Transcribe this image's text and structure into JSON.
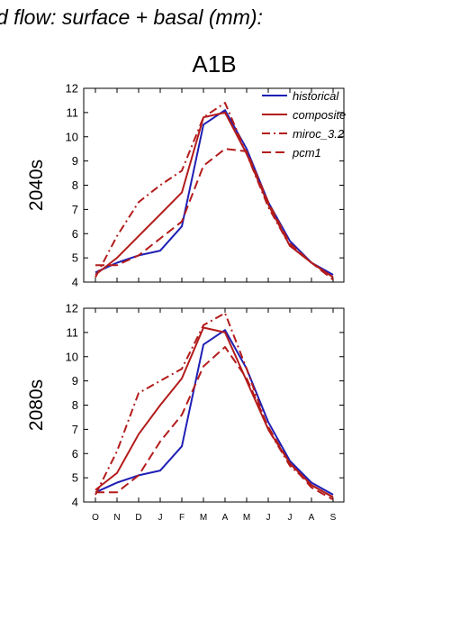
{
  "figure": {
    "title": "d flow: surface + basal (mm):",
    "subtitle": "A1B"
  },
  "colors": {
    "historical": "#1f1fb4",
    "composite": "#b31b1b",
    "miroc_3.2": "#b31b1b",
    "pcm1": "#b31b1b"
  },
  "chart_data": [
    {
      "type": "line",
      "panel_label": "2040s",
      "categories": [
        "O",
        "N",
        "D",
        "J",
        "F",
        "M",
        "A",
        "M",
        "J",
        "J",
        "A",
        "S"
      ],
      "ylim": [
        4,
        12
      ],
      "yticks": [
        4,
        5,
        6,
        7,
        8,
        9,
        10,
        11,
        12
      ],
      "legend": {
        "position": "top-right",
        "entries": [
          "historical",
          "composite",
          "miroc_3.2",
          "pcm1"
        ]
      },
      "series": [
        {
          "name": "historical",
          "style": "solid",
          "values": [
            4.4,
            4.8,
            5.1,
            5.3,
            6.3,
            10.5,
            11.1,
            9.5,
            7.3,
            5.7,
            4.8,
            4.3
          ]
        },
        {
          "name": "composite",
          "style": "solid",
          "values": [
            4.3,
            5.0,
            5.9,
            6.8,
            7.7,
            10.8,
            11.0,
            9.3,
            7.2,
            5.5,
            4.8,
            4.2
          ]
        },
        {
          "name": "miroc_3.2",
          "style": "dashdot",
          "values": [
            4.2,
            5.9,
            7.3,
            8.0,
            8.6,
            10.8,
            11.4,
            9.3,
            7.1,
            5.5,
            4.8,
            4.2
          ]
        },
        {
          "name": "pcm1",
          "style": "dash",
          "values": [
            4.7,
            4.7,
            5.1,
            5.8,
            6.5,
            8.8,
            9.5,
            9.4,
            7.3,
            5.6,
            4.8,
            4.1
          ]
        }
      ]
    },
    {
      "type": "line",
      "panel_label": "2080s",
      "categories": [
        "O",
        "N",
        "D",
        "J",
        "F",
        "M",
        "A",
        "M",
        "J",
        "J",
        "A",
        "S"
      ],
      "ylim": [
        4,
        12
      ],
      "yticks": [
        4,
        5,
        6,
        7,
        8,
        9,
        10,
        11,
        12
      ],
      "series": [
        {
          "name": "historical",
          "style": "solid",
          "values": [
            4.4,
            4.8,
            5.1,
            5.3,
            6.3,
            10.5,
            11.1,
            9.5,
            7.3,
            5.7,
            4.8,
            4.3
          ]
        },
        {
          "name": "composite",
          "style": "solid",
          "values": [
            4.5,
            5.2,
            6.8,
            8.0,
            9.1,
            11.2,
            11.0,
            9.0,
            7.0,
            5.6,
            4.7,
            4.2
          ]
        },
        {
          "name": "miroc_3.2",
          "style": "dashdot",
          "values": [
            4.3,
            6.1,
            8.5,
            9.0,
            9.5,
            11.3,
            11.8,
            9.5,
            7.0,
            5.5,
            4.7,
            4.2
          ]
        },
        {
          "name": "pcm1",
          "style": "dash",
          "values": [
            4.4,
            4.4,
            5.1,
            6.5,
            7.6,
            9.6,
            10.4,
            9.1,
            7.1,
            5.6,
            4.6,
            4.1
          ]
        }
      ]
    }
  ]
}
